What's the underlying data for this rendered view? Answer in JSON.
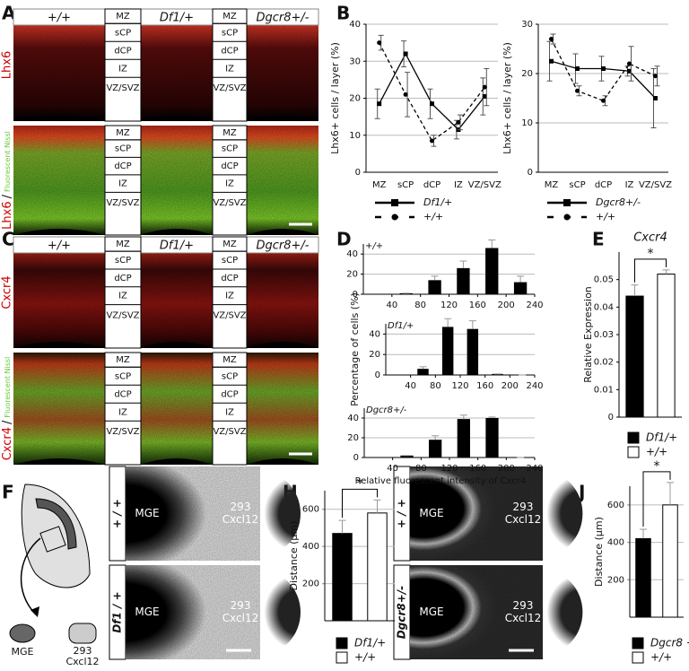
{
  "panel_labels": [
    "A",
    "B",
    "C",
    "D",
    "E",
    "F",
    "G",
    "H",
    "I",
    "J"
  ],
  "genotypes": [
    "+/+",
    "Df1/+",
    "Dgcr8+/-"
  ],
  "layers": [
    "MZ",
    "sCP",
    "dCP",
    "IZ",
    "VZ/SVZ"
  ],
  "panel_A": {
    "stains": [
      "Lhx6",
      "Lhx6"
    ],
    "separator": "/",
    "counterstain": "Fluorescent Nissl"
  },
  "panel_C": {
    "stains": [
      "Cxcr4",
      "Cxcr4"
    ],
    "separator": "/",
    "counterstain": "Fluorescent Nissl"
  },
  "panel_F": {
    "explant": "MGE",
    "cells": [
      "293",
      "Cxcl12"
    ]
  },
  "panel_G": {
    "rows": [
      "+ / +",
      "Df1 / +"
    ],
    "explant": "MGE",
    "cells": [
      "293",
      "Cxcl12"
    ]
  },
  "panel_I": {
    "rows": [
      "+ / +",
      "Dgcr8+/-"
    ],
    "explant": "MGE",
    "cells": [
      "293",
      "Cxcl12"
    ]
  },
  "chart_data": [
    {
      "type": "line",
      "ylabel": "Lhx6+ cells /  layer (%)",
      "categories": [
        "MZ",
        "sCP",
        "dCP",
        "IZ",
        "VZ/SVZ"
      ],
      "ylim": [
        0,
        40
      ],
      "yticks": [
        0,
        10,
        20,
        30,
        40
      ],
      "grid": true,
      "series": [
        {
          "name": "Df1/+",
          "color": "#000000",
          "line_style": "solid",
          "marker": "square",
          "values": [
            18.5,
            32,
            18.5,
            11.5,
            20.5
          ],
          "errors": [
            4,
            3.5,
            4,
            2.5,
            5
          ]
        },
        {
          "name": "+/+",
          "color": "#000000",
          "line_style": "dashed",
          "marker": "circle",
          "values": [
            35,
            21,
            8.5,
            13.5,
            23
          ],
          "errors": [
            2,
            6,
            1.5,
            2,
            5
          ]
        }
      ]
    },
    {
      "type": "line",
      "ylabel": "Lhx6+ cells /  layer (%)",
      "categories": [
        "MZ",
        "sCP",
        "dCP",
        "IZ",
        "VZ/SVZ"
      ],
      "ylim": [
        0,
        30
      ],
      "yticks": [
        0,
        10,
        20,
        30
      ],
      "grid": true,
      "series": [
        {
          "name": "Dgcr8+/-",
          "color": "#000000",
          "line_style": "solid",
          "marker": "square",
          "values": [
            22.5,
            21,
            21,
            20.5,
            15
          ],
          "errors": [
            4,
            3,
            2.5,
            1,
            6
          ]
        },
        {
          "name": "+/+",
          "color": "#000000",
          "line_style": "dashed",
          "marker": "circle",
          "values": [
            27,
            16.5,
            14.5,
            22,
            19.5
          ],
          "errors": [
            1,
            1,
            1,
            3.5,
            2
          ]
        }
      ]
    },
    {
      "type": "histogram",
      "title": "+/+",
      "bins": [
        40,
        80,
        120,
        160,
        200,
        240
      ],
      "values": [
        1,
        14,
        26,
        46,
        12
      ],
      "errors": [
        0,
        4,
        7,
        8,
        6
      ],
      "color": "#000000",
      "xlim": [
        0,
        240
      ],
      "xticks": [
        40,
        80,
        120,
        160,
        200,
        240
      ],
      "ylim": [
        0,
        50
      ],
      "yticks": [
        0,
        20,
        40
      ],
      "grid": true
    },
    {
      "type": "histogram",
      "title": "Df1/+",
      "ylabel": "Percentage of cells  (%)",
      "bins": [
        40,
        80,
        120,
        160,
        200,
        240
      ],
      "values": [
        6,
        47,
        45,
        1,
        0
      ],
      "errors": [
        2,
        8,
        8,
        0,
        0
      ],
      "color": "#000000",
      "xlim": [
        0,
        240
      ],
      "xticks": [
        40,
        80,
        120,
        160,
        200,
        240
      ],
      "ylim": [
        0,
        50
      ],
      "yticks": [
        0,
        20,
        40
      ],
      "grid": true
    },
    {
      "type": "histogram",
      "title": "Dgcr8+/-",
      "xlabel": "Relative fluorescent intensity of Cxcr4",
      "bins": [
        40,
        80,
        120,
        160,
        200,
        240
      ],
      "values": [
        2,
        18,
        39,
        40,
        0
      ],
      "errors": [
        0,
        4,
        4,
        1,
        0
      ],
      "color": "#000000",
      "xlim": [
        0,
        240
      ],
      "xticks": [
        40,
        80,
        120,
        160,
        200,
        240
      ],
      "ylim": [
        0,
        50
      ],
      "yticks": [
        0,
        20,
        40
      ],
      "grid": true
    },
    {
      "type": "bar",
      "title": "Cxcr4",
      "ylabel": "Relative Expression",
      "significance": "*",
      "ylim": [
        0,
        0.06
      ],
      "yticks": [
        0,
        0.01,
        0.02,
        0.03,
        0.04,
        0.05
      ],
      "grid": false,
      "series": [
        {
          "name": "Df1/+",
          "color": "#000000",
          "values": [
            0.044
          ],
          "errors": [
            0.004
          ]
        },
        {
          "name": "+/+",
          "color": "#ffffff",
          "values": [
            0.052
          ],
          "errors": [
            0.0015
          ]
        }
      ]
    },
    {
      "type": "bar",
      "ylabel": "Distance (μm)",
      "significance": "*",
      "ylim": [
        0,
        700
      ],
      "yticks": [
        200,
        400,
        600
      ],
      "grid": true,
      "series": [
        {
          "name": "Df1/+",
          "color": "#000000",
          "values": [
            470
          ],
          "errors": [
            70
          ]
        },
        {
          "name": "+/+",
          "color": "#ffffff",
          "values": [
            580
          ],
          "errors": [
            70
          ]
        }
      ]
    },
    {
      "type": "bar",
      "ylabel": "Distance (μm)",
      "significance": "*",
      "ylim": [
        0,
        700
      ],
      "yticks": [
        200,
        400,
        600
      ],
      "grid": true,
      "series": [
        {
          "name": "Dgcr8 +/-",
          "color": "#000000",
          "values": [
            420
          ],
          "errors": [
            50
          ]
        },
        {
          "name": "+/+",
          "color": "#ffffff",
          "values": [
            600
          ],
          "errors": [
            120
          ]
        }
      ]
    }
  ]
}
